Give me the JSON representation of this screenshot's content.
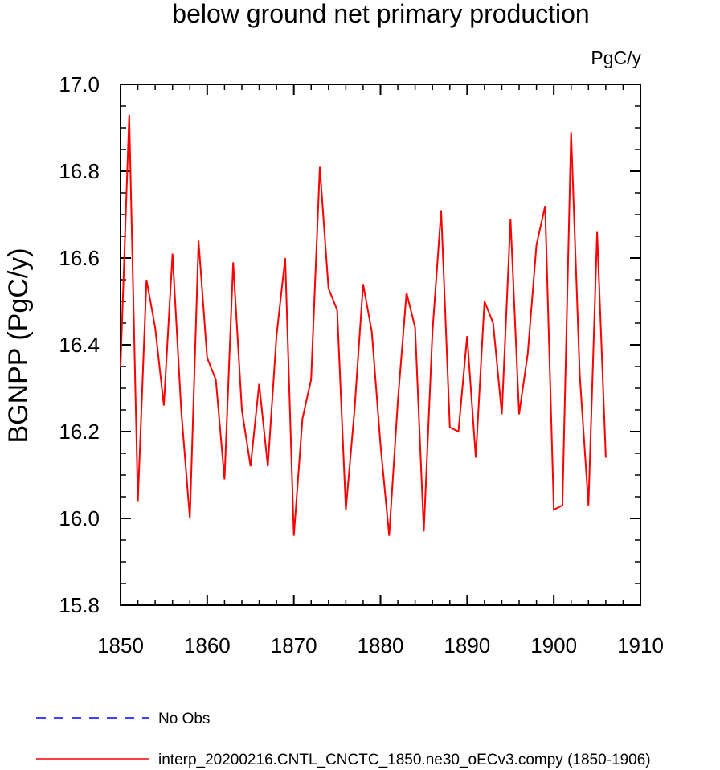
{
  "chart_data": {
    "type": "line",
    "title": "below ground net primary production",
    "units_label": "PgC/y",
    "ylabel": "BGNPP  (PgC/y)",
    "xlabel": "",
    "xlim": [
      1850,
      1910
    ],
    "ylim": [
      15.8,
      17.0
    ],
    "xticks": [
      1850,
      1860,
      1870,
      1880,
      1890,
      1900,
      1910
    ],
    "yticks": [
      15.8,
      16.0,
      16.2,
      16.4,
      16.6,
      16.8,
      17.0
    ],
    "ytick_labels": [
      "15.8",
      "16.0",
      "16.2",
      "16.4",
      "16.6",
      "16.8",
      "17.0"
    ],
    "grid": false,
    "legend_position": "bottom",
    "series": [
      {
        "name": "interp_20200216.CNTL_CNCTC_1850.ne30_oECv3.compy (1850-1906)",
        "color": "#ff0000",
        "style": "solid",
        "x": [
          1850,
          1851,
          1852,
          1853,
          1854,
          1855,
          1856,
          1857,
          1858,
          1859,
          1860,
          1861,
          1862,
          1863,
          1864,
          1865,
          1866,
          1867,
          1868,
          1869,
          1870,
          1871,
          1872,
          1873,
          1874,
          1875,
          1876,
          1877,
          1878,
          1879,
          1880,
          1881,
          1882,
          1883,
          1884,
          1885,
          1886,
          1887,
          1888,
          1889,
          1890,
          1891,
          1892,
          1893,
          1894,
          1895,
          1896,
          1897,
          1898,
          1899,
          1900,
          1901,
          1902,
          1903,
          1904,
          1905,
          1906
        ],
        "values": [
          16.35,
          16.93,
          16.04,
          16.55,
          16.44,
          16.26,
          16.61,
          16.25,
          16.0,
          16.64,
          16.37,
          16.32,
          16.09,
          16.59,
          16.25,
          16.12,
          16.31,
          16.12,
          16.42,
          16.6,
          15.96,
          16.23,
          16.32,
          16.81,
          16.53,
          16.48,
          16.02,
          16.25,
          16.54,
          16.43,
          16.17,
          15.96,
          16.27,
          16.52,
          16.44,
          15.97,
          16.43,
          16.71,
          16.21,
          16.2,
          16.42,
          16.14,
          16.5,
          16.45,
          16.24,
          16.69,
          16.24,
          16.38,
          16.63,
          16.72,
          16.02,
          16.03,
          16.89,
          16.33,
          16.03,
          16.66,
          16.14
        ]
      }
    ],
    "legend": [
      {
        "label": "No Obs",
        "color": "#0000ff",
        "style": "dashed"
      },
      {
        "label": "interp_20200216.CNTL_CNCTC_1850.ne30_oECv3.compy (1850-1906)",
        "color": "#ff0000",
        "style": "solid"
      }
    ]
  }
}
